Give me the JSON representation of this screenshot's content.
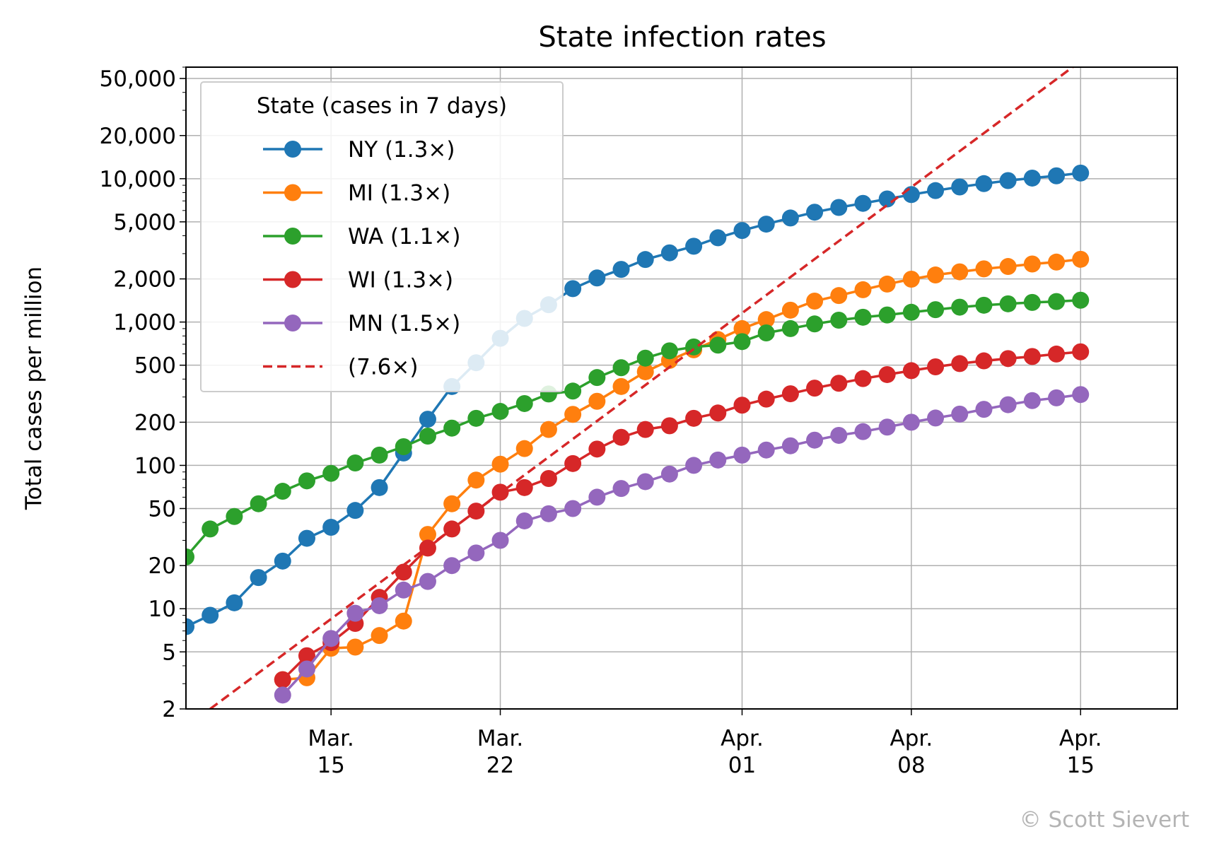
{
  "chart_data": {
    "type": "line",
    "title": "State infection rates",
    "xlabel": "",
    "ylabel": "Total cases per million",
    "y_scale": "log",
    "ylim": [
      2,
      60000
    ],
    "xlim": [
      "2020-03-09",
      "2020-04-19"
    ],
    "grid": true,
    "x_ticks": [
      {
        "date": "2020-03-15",
        "label": [
          "Mar.",
          "15"
        ]
      },
      {
        "date": "2020-03-22",
        "label": [
          "Mar.",
          "22"
        ]
      },
      {
        "date": "2020-04-01",
        "label": [
          "Apr.",
          "01"
        ]
      },
      {
        "date": "2020-04-08",
        "label": [
          "Apr.",
          "08"
        ]
      },
      {
        "date": "2020-04-15",
        "label": [
          "Apr.",
          "15"
        ]
      }
    ],
    "y_ticks": [
      {
        "value": 2,
        "label": "2"
      },
      {
        "value": 5,
        "label": "5"
      },
      {
        "value": 10,
        "label": "10"
      },
      {
        "value": 20,
        "label": "20"
      },
      {
        "value": 50,
        "label": "50"
      },
      {
        "value": 100,
        "label": "100"
      },
      {
        "value": 200,
        "label": "200"
      },
      {
        "value": 500,
        "label": "500"
      },
      {
        "value": 1000,
        "label": "1,000"
      },
      {
        "value": 2000,
        "label": "2,000"
      },
      {
        "value": 5000,
        "label": "5,000"
      },
      {
        "value": 10000,
        "label": "10,000"
      },
      {
        "value": 20000,
        "label": "20,000"
      },
      {
        "value": 50000,
        "label": "50,000"
      }
    ],
    "legend": {
      "title": "State (cases in 7 days)",
      "position": "upper-left"
    },
    "series": [
      {
        "name": "NY (1.3×)",
        "color": "#1f77b4",
        "style": "line-marker",
        "x": [
          "2020-03-09",
          "2020-03-10",
          "2020-03-11",
          "2020-03-12",
          "2020-03-13",
          "2020-03-14",
          "2020-03-15",
          "2020-03-16",
          "2020-03-17",
          "2020-03-18",
          "2020-03-19",
          "2020-03-20",
          "2020-03-21",
          "2020-03-22",
          "2020-03-23",
          "2020-03-24",
          "2020-03-25",
          "2020-03-26",
          "2020-03-27",
          "2020-03-28",
          "2020-03-29",
          "2020-03-30",
          "2020-03-31",
          "2020-04-01",
          "2020-04-02",
          "2020-04-03",
          "2020-04-04",
          "2020-04-05",
          "2020-04-06",
          "2020-04-07",
          "2020-04-08",
          "2020-04-09",
          "2020-04-10",
          "2020-04-11",
          "2020-04-12",
          "2020-04-13",
          "2020-04-14",
          "2020-04-15"
        ],
        "values": [
          7.5,
          9,
          11,
          16.5,
          21.5,
          31,
          37,
          48.5,
          70,
          122,
          210,
          355,
          520,
          770,
          1060,
          1320,
          1710,
          2030,
          2330,
          2730,
          3040,
          3380,
          3870,
          4350,
          4820,
          5320,
          5840,
          6300,
          6730,
          7220,
          7750,
          8260,
          8760,
          9240,
          9700,
          10100,
          10470,
          10950
        ]
      },
      {
        "name": "MI (1.3×)",
        "color": "#ff7f0e",
        "style": "line-marker",
        "x": [
          "2020-03-13",
          "2020-03-14",
          "2020-03-15",
          "2020-03-16",
          "2020-03-17",
          "2020-03-18",
          "2020-03-19",
          "2020-03-20",
          "2020-03-21",
          "2020-03-22",
          "2020-03-23",
          "2020-03-24",
          "2020-03-25",
          "2020-03-26",
          "2020-03-27",
          "2020-03-28",
          "2020-03-29",
          "2020-03-30",
          "2020-03-31",
          "2020-04-01",
          "2020-04-02",
          "2020-04-03",
          "2020-04-04",
          "2020-04-05",
          "2020-04-06",
          "2020-04-07",
          "2020-04-08",
          "2020-04-09",
          "2020-04-10",
          "2020-04-11",
          "2020-04-12",
          "2020-04-13",
          "2020-04-14",
          "2020-04-15"
        ],
        "values": [
          3.2,
          3.3,
          5.3,
          5.4,
          6.5,
          8.2,
          33,
          54,
          79,
          102,
          131,
          178,
          227,
          280,
          355,
          450,
          540,
          640,
          755,
          900,
          1040,
          1210,
          1400,
          1530,
          1680,
          1840,
          1990,
          2130,
          2240,
          2350,
          2440,
          2540,
          2620,
          2740
        ]
      },
      {
        "name": "WA (1.1×)",
        "color": "#2ca02c",
        "style": "line-marker",
        "x": [
          "2020-03-09",
          "2020-03-10",
          "2020-03-11",
          "2020-03-12",
          "2020-03-13",
          "2020-03-14",
          "2020-03-15",
          "2020-03-16",
          "2020-03-17",
          "2020-03-18",
          "2020-03-19",
          "2020-03-20",
          "2020-03-21",
          "2020-03-22",
          "2020-03-23",
          "2020-03-24",
          "2020-03-25",
          "2020-03-26",
          "2020-03-27",
          "2020-03-28",
          "2020-03-29",
          "2020-03-30",
          "2020-03-31",
          "2020-04-01",
          "2020-04-02",
          "2020-04-03",
          "2020-04-04",
          "2020-04-05",
          "2020-04-06",
          "2020-04-07",
          "2020-04-08",
          "2020-04-09",
          "2020-04-10",
          "2020-04-11",
          "2020-04-12",
          "2020-04-13",
          "2020-04-14",
          "2020-04-15"
        ],
        "values": [
          23,
          36,
          44,
          54,
          66,
          78,
          88,
          104,
          118,
          135,
          160,
          182,
          213,
          238,
          270,
          315,
          330,
          410,
          480,
          560,
          630,
          670,
          690,
          730,
          840,
          900,
          970,
          1030,
          1080,
          1120,
          1170,
          1220,
          1270,
          1310,
          1340,
          1370,
          1390,
          1420
        ]
      },
      {
        "name": "WI (1.3×)",
        "color": "#d62728",
        "style": "line-marker",
        "x": [
          "2020-03-13",
          "2020-03-14",
          "2020-03-15",
          "2020-03-16",
          "2020-03-17",
          "2020-03-18",
          "2020-03-19",
          "2020-03-20",
          "2020-03-21",
          "2020-03-22",
          "2020-03-23",
          "2020-03-24",
          "2020-03-25",
          "2020-03-26",
          "2020-03-27",
          "2020-03-28",
          "2020-03-29",
          "2020-03-30",
          "2020-03-31",
          "2020-04-01",
          "2020-04-02",
          "2020-04-03",
          "2020-04-04",
          "2020-04-05",
          "2020-04-06",
          "2020-04-07",
          "2020-04-08",
          "2020-04-09",
          "2020-04-10",
          "2020-04-11",
          "2020-04-12",
          "2020-04-13",
          "2020-04-14",
          "2020-04-15"
        ],
        "values": [
          3.2,
          4.7,
          5.8,
          7.9,
          12,
          18,
          26.5,
          36,
          48,
          65,
          70,
          81,
          103,
          130,
          157,
          178,
          189,
          213,
          232,
          263,
          290,
          316,
          346,
          374,
          403,
          430,
          458,
          487,
          513,
          536,
          556,
          575,
          598,
          620
        ]
      },
      {
        "name": "MN (1.5×)",
        "color": "#9467bd",
        "style": "line-marker",
        "x": [
          "2020-03-13",
          "2020-03-14",
          "2020-03-15",
          "2020-03-16",
          "2020-03-17",
          "2020-03-18",
          "2020-03-19",
          "2020-03-20",
          "2020-03-21",
          "2020-03-22",
          "2020-03-23",
          "2020-03-24",
          "2020-03-25",
          "2020-03-26",
          "2020-03-27",
          "2020-03-28",
          "2020-03-29",
          "2020-03-30",
          "2020-03-31",
          "2020-04-01",
          "2020-04-02",
          "2020-04-03",
          "2020-04-04",
          "2020-04-05",
          "2020-04-06",
          "2020-04-07",
          "2020-04-08",
          "2020-04-09",
          "2020-04-10",
          "2020-04-11",
          "2020-04-12",
          "2020-04-13",
          "2020-04-14",
          "2020-04-15"
        ],
        "values": [
          2.5,
          3.8,
          6.2,
          9.3,
          10.5,
          13.5,
          15.5,
          20,
          24.5,
          30,
          41,
          46,
          50,
          60,
          69,
          77,
          87,
          100,
          109,
          118,
          128,
          137,
          150,
          162,
          172,
          185,
          200,
          214,
          228,
          246,
          265,
          283,
          296,
          312
        ]
      },
      {
        "name": "(7.6×)",
        "color": "#d62728",
        "style": "dashed",
        "x": [
          "2020-03-10",
          "2020-04-15"
        ],
        "values": [
          2.0,
          66000
        ]
      }
    ]
  },
  "watermark": "© Scott Sievert"
}
